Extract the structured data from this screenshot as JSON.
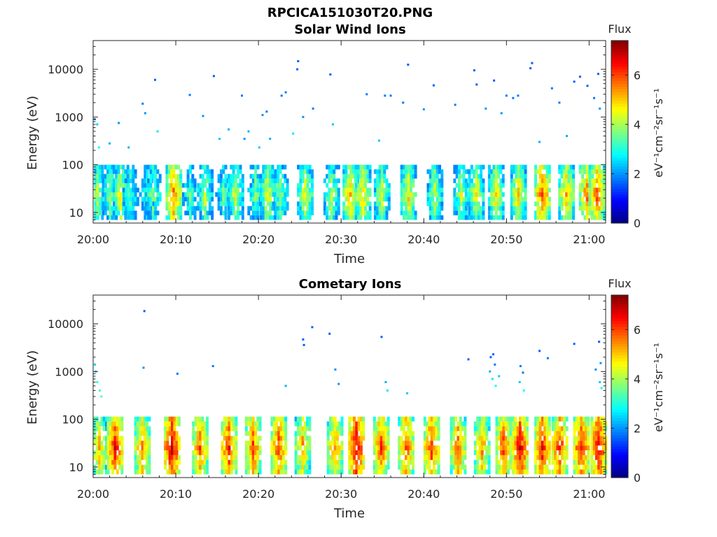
{
  "figure_title": "RPCICA151030T20.PNG",
  "colors": {
    "background": "#ffffff",
    "axis": "#262626",
    "colormap": "jet"
  },
  "chart_data": [
    {
      "type": "heatmap",
      "title": "Solar Wind Ions",
      "xlabel": "Time",
      "ylabel": "Energy (eV)",
      "y_scale": "log",
      "ylim": [
        6,
        40000
      ],
      "xlim": [
        "20:00",
        "21:02"
      ],
      "x_ticks": [
        "20:00",
        "20:10",
        "20:20",
        "20:30",
        "20:40",
        "20:50",
        "21:00"
      ],
      "y_ticks": [
        "10",
        "100",
        "1000",
        "10000"
      ],
      "colorbar": {
        "title": "Flux",
        "label": "eV⁻¹cm⁻²sr⁻¹s⁻¹",
        "range": [
          0,
          7.4
        ],
        "ticks": [
          "0",
          "2",
          "4",
          "6"
        ]
      },
      "band_energy_range_eV": [
        7,
        80
      ],
      "band_times_min": [
        0.4,
        1.9,
        3.2,
        4.4,
        6.4,
        7.1,
        9.6,
        11.6,
        13.4,
        15.6,
        17.1,
        19.5,
        21.0,
        22.5,
        25.5,
        28.7,
        31.0,
        32.5,
        34.8,
        38.0,
        41.2,
        44.4,
        46.2,
        48.6,
        51.3,
        54.2,
        57.1,
        59.6,
        60.8
      ],
      "band_peaks": [
        4.2,
        4.0,
        4.6,
        3.6,
        3.4,
        4.0,
        5.6,
        3.6,
        4.2,
        3.6,
        4.4,
        3.8,
        4.6,
        4.0,
        4.6,
        4.2,
        5.2,
        5.0,
        4.4,
        4.8,
        4.4,
        4.2,
        4.6,
        4.8,
        5.0,
        5.8,
        5.2,
        5.6,
        5.8
      ],
      "scatter_points": [
        [
          0.2,
          900,
          2.0
        ],
        [
          0.5,
          700,
          2.4
        ],
        [
          0.7,
          230,
          2.8
        ],
        [
          2.0,
          280,
          2.2
        ],
        [
          3.1,
          750,
          2.0
        ],
        [
          4.3,
          230,
          2.2
        ],
        [
          6.0,
          1900,
          1.8
        ],
        [
          6.3,
          1200,
          2.0
        ],
        [
          7.5,
          6000,
          1.6
        ],
        [
          7.8,
          500,
          2.6
        ],
        [
          11.7,
          2900,
          1.8
        ],
        [
          13.3,
          1050,
          2.0
        ],
        [
          14.6,
          7200,
          1.6
        ],
        [
          15.3,
          350,
          2.4
        ],
        [
          16.4,
          550,
          2.2
        ],
        [
          18.0,
          2800,
          1.8
        ],
        [
          18.3,
          350,
          2.0
        ],
        [
          18.8,
          500,
          2.2
        ],
        [
          20.1,
          230,
          2.4
        ],
        [
          20.5,
          1100,
          2.0
        ],
        [
          21.0,
          1300,
          1.8
        ],
        [
          21.4,
          350,
          2.2
        ],
        [
          22.8,
          2800,
          1.8
        ],
        [
          23.3,
          3300,
          1.8
        ],
        [
          24.2,
          450,
          2.6
        ],
        [
          24.7,
          10000,
          1.6
        ],
        [
          24.8,
          14800,
          1.6
        ],
        [
          25.4,
          1000,
          2.0
        ],
        [
          26.6,
          1500,
          1.8
        ],
        [
          28.7,
          7800,
          1.6
        ],
        [
          29.0,
          700,
          2.4
        ],
        [
          33.1,
          3000,
          1.8
        ],
        [
          34.6,
          320,
          2.4
        ],
        [
          35.3,
          2800,
          1.8
        ],
        [
          36.0,
          2800,
          1.8
        ],
        [
          37.5,
          2000,
          1.8
        ],
        [
          38.1,
          12500,
          1.6
        ],
        [
          40.0,
          1450,
          2.0
        ],
        [
          41.2,
          4600,
          1.6
        ],
        [
          43.8,
          1800,
          1.8
        ],
        [
          46.1,
          9500,
          1.6
        ],
        [
          46.4,
          4800,
          1.6
        ],
        [
          47.5,
          1500,
          2.0
        ],
        [
          48.5,
          5800,
          1.6
        ],
        [
          49.4,
          1200,
          2.0
        ],
        [
          50.0,
          2800,
          1.8
        ],
        [
          50.8,
          2500,
          1.8
        ],
        [
          51.4,
          2800,
          1.8
        ],
        [
          52.9,
          10500,
          1.6
        ],
        [
          53.1,
          13500,
          1.6
        ],
        [
          54.0,
          300,
          2.2
        ],
        [
          55.5,
          4000,
          1.8
        ],
        [
          56.4,
          2000,
          1.8
        ],
        [
          57.3,
          400,
          2.2
        ],
        [
          58.2,
          5500,
          1.6
        ],
        [
          58.9,
          7000,
          1.6
        ],
        [
          59.8,
          4500,
          1.6
        ],
        [
          60.6,
          2500,
          1.8
        ],
        [
          61.1,
          8000,
          1.6
        ],
        [
          61.3,
          1500,
          2.0
        ]
      ]
    },
    {
      "type": "heatmap",
      "title": "Cometary Ions",
      "xlabel": "Time",
      "ylabel": "Energy (eV)",
      "y_scale": "log",
      "ylim": [
        6,
        40000
      ],
      "xlim": [
        "20:00",
        "21:02"
      ],
      "x_ticks": [
        "20:00",
        "20:10",
        "20:20",
        "20:30",
        "20:40",
        "20:50",
        "21:00"
      ],
      "y_ticks": [
        "10",
        "100",
        "1000",
        "10000"
      ],
      "colorbar": {
        "title": "Flux",
        "label": "eV⁻¹cm⁻²sr⁻¹s⁻¹",
        "range": [
          0,
          7.4
        ],
        "ticks": [
          "0",
          "2",
          "4",
          "6"
        ]
      },
      "band_energy_range_eV": [
        7,
        90
      ],
      "band_times_min": [
        0.6,
        2.5,
        5.8,
        9.4,
        12.8,
        16.3,
        19.2,
        22.3,
        25.2,
        29.1,
        31.7,
        34.7,
        37.7,
        40.8,
        44.0,
        46.9,
        49.5,
        51.5,
        54.2,
        56.3,
        58.9,
        61.0
      ],
      "band_peaks": [
        5.2,
        6.4,
        5.6,
        6.8,
        5.8,
        6.2,
        6.0,
        6.0,
        5.4,
        5.6,
        6.8,
        6.0,
        6.0,
        6.2,
        5.8,
        5.4,
        6.0,
        6.6,
        6.4,
        6.2,
        6.4,
        6.6
      ],
      "scatter_points": [
        [
          6.2,
          18500,
          1.6
        ],
        [
          6.1,
          1200,
          2.0
        ],
        [
          10.2,
          900,
          1.8
        ],
        [
          14.5,
          1300,
          1.8
        ],
        [
          23.3,
          500,
          2.2
        ],
        [
          25.4,
          4700,
          1.6
        ],
        [
          25.5,
          3600,
          1.6
        ],
        [
          26.5,
          8500,
          1.6
        ],
        [
          28.6,
          6200,
          1.6
        ],
        [
          29.3,
          1100,
          2.0
        ],
        [
          29.7,
          550,
          2.0
        ],
        [
          34.9,
          5300,
          1.6
        ],
        [
          35.4,
          600,
          2.2
        ],
        [
          45.4,
          1800,
          1.6
        ],
        [
          48.1,
          2000,
          1.6
        ],
        [
          48.4,
          2300,
          1.6
        ],
        [
          48.6,
          1400,
          1.8
        ],
        [
          51.7,
          1300,
          1.8
        ],
        [
          52.0,
          950,
          1.8
        ],
        [
          54.0,
          2700,
          1.6
        ],
        [
          55.0,
          1900,
          1.8
        ],
        [
          58.2,
          3800,
          1.6
        ],
        [
          60.8,
          1100,
          2.0
        ],
        [
          61.2,
          4200,
          1.6
        ],
        [
          61.4,
          1500,
          2.0
        ],
        [
          0.2,
          1400,
          2.4
        ],
        [
          0.3,
          1000,
          2.6
        ],
        [
          0.5,
          600,
          3.0
        ],
        [
          0.8,
          400,
          3.2
        ],
        [
          1.0,
          300,
          3.4
        ],
        [
          48.0,
          1000,
          2.2
        ],
        [
          48.3,
          700,
          2.6
        ],
        [
          48.7,
          500,
          2.8
        ],
        [
          49.1,
          800,
          2.4
        ],
        [
          51.6,
          600,
          2.4
        ],
        [
          52.1,
          400,
          2.8
        ],
        [
          61.3,
          600,
          2.4
        ],
        [
          61.5,
          450,
          2.8
        ],
        [
          38.0,
          350,
          2.4
        ],
        [
          35.6,
          400,
          2.6
        ]
      ]
    }
  ]
}
